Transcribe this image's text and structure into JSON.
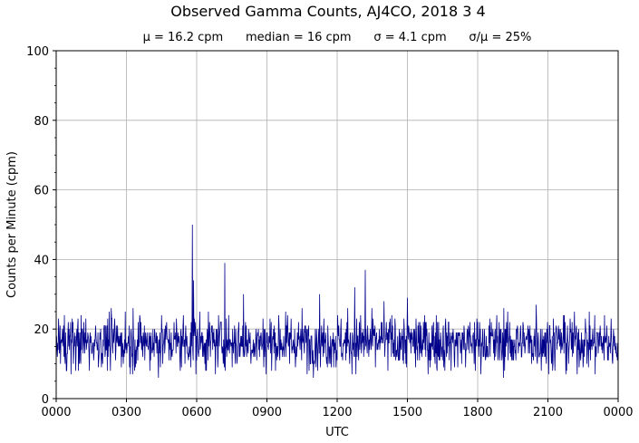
{
  "chart_data": {
    "type": "line",
    "title": "Observed Gamma Counts, AJ4CO, 2018 3 4",
    "subtitle": "μ = 16.2 cpm      median = 16 cpm      σ = 4.1 cpm      σ/μ = 25%",
    "xlabel": "UTC",
    "ylabel": "Counts per Minute (cpm)",
    "ylim": [
      0,
      100
    ],
    "yticks": [
      "0",
      "20",
      "40",
      "60",
      "80",
      "100"
    ],
    "xlim_minutes": [
      0,
      1440
    ],
    "xticks": [
      "0000",
      "0300",
      "0600",
      "0900",
      "1200",
      "1500",
      "1800",
      "2100",
      "0000"
    ],
    "grid": true,
    "line_color": "#00008b",
    "stats": {
      "mean": 16.2,
      "median": 16,
      "std": 4.1,
      "cv_percent": 25
    },
    "series": [
      {
        "sampling": "one value per minute, 1440 points",
        "typical_range": [
          6,
          26
        ],
        "spikes": [
          {
            "time": "0549",
            "value": 50
          },
          {
            "time": "0552",
            "value": 34
          },
          {
            "time": "0712",
            "value": 39
          },
          {
            "time": "0800",
            "value": 30
          },
          {
            "time": "1115",
            "value": 30
          },
          {
            "time": "1245",
            "value": 32
          },
          {
            "time": "1312",
            "value": 37
          },
          {
            "time": "1400",
            "value": 28
          },
          {
            "time": "1500",
            "value": 29
          },
          {
            "time": "2030",
            "value": 27
          }
        ]
      }
    ]
  }
}
